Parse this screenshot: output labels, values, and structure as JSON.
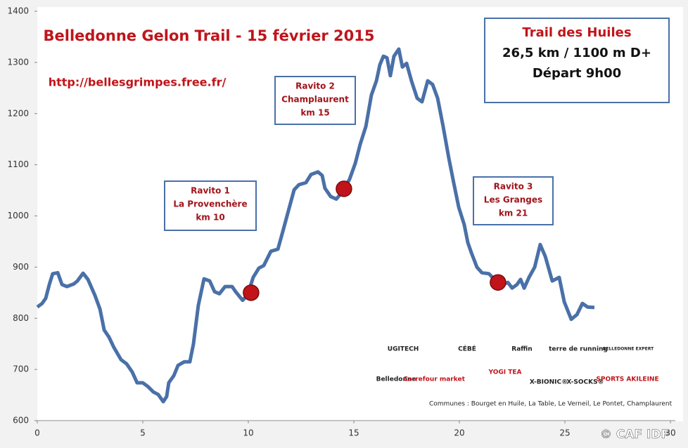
{
  "chart_data": {
    "type": "line",
    "title": "Belledonne Gelon Trail - 15 février 2015",
    "subtitle": "http://bellesgrimpes.free.fr/",
    "x": [
      0,
      0.23,
      0.4,
      0.57,
      0.73,
      0.97,
      1.17,
      1.4,
      1.73,
      1.9,
      2.17,
      2.4,
      2.73,
      2.97,
      3.17,
      3.4,
      3.63,
      3.97,
      4.23,
      4.5,
      4.73,
      5,
      5.23,
      5.5,
      5.73,
      5.97,
      6.13,
      6.23,
      6.47,
      6.67,
      6.97,
      7.23,
      7.4,
      7.63,
      7.9,
      8.17,
      8.4,
      8.63,
      8.9,
      9.23,
      9.4,
      9.73,
      9.97,
      10.23,
      10.5,
      10.73,
      11.07,
      11.4,
      11.63,
      11.9,
      12.17,
      12.4,
      12.73,
      12.97,
      13.3,
      13.5,
      13.63,
      13.9,
      14.17,
      14.5,
      14.8,
      15.07,
      15.3,
      15.57,
      15.83,
      16.07,
      16.23,
      16.4,
      16.57,
      16.73,
      16.9,
      17.13,
      17.3,
      17.5,
      17.73,
      18,
      18.23,
      18.5,
      18.73,
      18.97,
      19.23,
      19.5,
      19.73,
      19.97,
      20.23,
      20.4,
      20.57,
      20.83,
      21.07,
      21.4,
      21.73,
      22.07,
      22.3,
      22.5,
      22.73,
      22.9,
      23.07,
      23.3,
      23.57,
      23.83,
      24.07,
      24.4,
      24.73,
      24.97,
      25.3,
      25.57,
      25.83,
      26.07,
      26.4
    ],
    "values": [
      822,
      829,
      839,
      866,
      887,
      889,
      866,
      862,
      867,
      873,
      888,
      876,
      845,
      818,
      777,
      763,
      743,
      719,
      711,
      695,
      674,
      674,
      667,
      656,
      651,
      637,
      647,
      674,
      688,
      708,
      715,
      715,
      750,
      825,
      877,
      873,
      852,
      848,
      862,
      862,
      852,
      835,
      846,
      880,
      898,
      903,
      931,
      935,
      969,
      1010,
      1051,
      1061,
      1065,
      1081,
      1086,
      1079,
      1054,
      1038,
      1033,
      1049,
      1072,
      1103,
      1140,
      1175,
      1236,
      1264,
      1295,
      1312,
      1309,
      1274,
      1312,
      1326,
      1291,
      1298,
      1264,
      1230,
      1223,
      1264,
      1257,
      1230,
      1175,
      1113,
      1065,
      1017,
      983,
      948,
      928,
      900,
      889,
      887,
      873,
      866,
      870,
      859,
      866,
      876,
      859,
      880,
      900,
      944,
      921,
      873,
      880,
      832,
      798,
      807,
      829,
      822,
      821
    ],
    "color": "#4a70a8",
    "points": {
      "x": [
        10.13,
        14.53,
        21.83
      ],
      "y": [
        850,
        1053,
        870
      ],
      "color": "#c0141a"
    },
    "xlim": [
      0,
      30
    ],
    "xticks": [
      0,
      5,
      10,
      15,
      20,
      25,
      30
    ],
    "ylim": [
      600,
      1400
    ],
    "yticks": [
      600,
      700,
      800,
      900,
      1000,
      1100,
      1200,
      1300,
      1400
    ],
    "grid": false,
    "annotations": [
      {
        "lines": [
          "Ravito 1",
          "La Provenchère",
          "km 10"
        ]
      },
      {
        "lines": [
          "Ravito 2",
          "Champlaurent",
          "km 15"
        ]
      },
      {
        "lines": [
          "Ravito 3",
          "Les Granges",
          "km 21"
        ]
      }
    ],
    "info": [
      "Trail des Huiles",
      "26,5 km / 1100 m D+",
      "Départ 9h00"
    ]
  },
  "sponsors": {
    "logos": [
      "UGITECH",
      "CÉBÉ",
      "Raffin",
      "terre de running",
      "BELLEDONNE EXPERT",
      "Belledonne",
      "Carrefour market",
      "YOGI TEA",
      "X-BIONIC®",
      "X-SOCKS®",
      "SPORTS AKILEINE"
    ],
    "communes": "Communes : Bourget en Huile, La Table, Le Verneil, Le Pontet, Champlaurent"
  },
  "copyright": "© CAF IDF"
}
